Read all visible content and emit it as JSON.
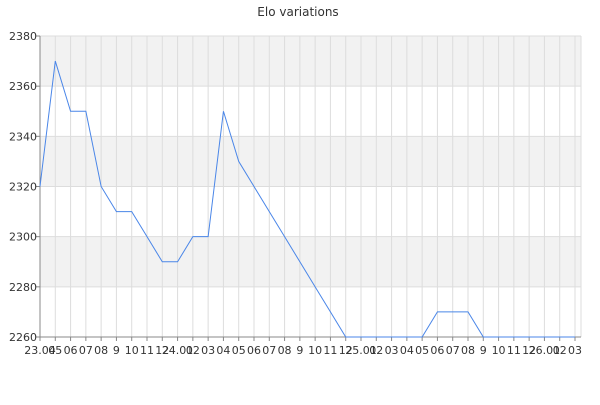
{
  "chart_data": {
    "type": "line",
    "title": "Elo variations",
    "xlabel": "",
    "ylabel": "",
    "ylim": [
      2260,
      2380
    ],
    "y_ticks": [
      2260,
      2280,
      2300,
      2320,
      2340,
      2360,
      2380
    ],
    "x_tick_labels": [
      "23.04",
      "05",
      "06",
      "07",
      "08",
      "9",
      "10",
      "11",
      "12",
      "24.01",
      "02",
      "03",
      "04",
      "05",
      "06",
      "07",
      "08",
      "9",
      "10",
      "11",
      "12",
      "25.01",
      "02",
      "03",
      "04",
      "05",
      "06",
      "07",
      "08",
      "9",
      "10",
      "11",
      "12",
      "26.01",
      "02",
      "03"
    ],
    "grid": true,
    "legend": "none",
    "colors": {
      "line": "#4a86e8",
      "band": "#f2f2f2",
      "grid": "#dddddd",
      "axis": "#888888",
      "text": "#333333"
    },
    "series": [
      {
        "x": [
          "23.04",
          "05",
          "06",
          "07",
          "08",
          "9",
          "10",
          "11",
          "12",
          "24.01",
          "02",
          "03",
          "04",
          "05",
          "06",
          "07",
          "08",
          "9",
          "10",
          "11",
          "12",
          "25.01",
          "02",
          "03",
          "04",
          "05",
          "06",
          "07",
          "08",
          "9",
          "10",
          "11",
          "12",
          "26.01",
          "02",
          "03"
        ],
        "values": [
          2320,
          2370,
          2350,
          2350,
          2320,
          2310,
          2310,
          2300,
          2290,
          2290,
          2300,
          2300,
          2350,
          2330,
          2320,
          2310,
          2300,
          2290,
          2280,
          2270,
          2260,
          2260,
          2260,
          2260,
          2260,
          2260,
          2270,
          2270,
          2270,
          2260,
          2260,
          2260,
          2260,
          2260,
          2260,
          2260
        ]
      }
    ]
  }
}
